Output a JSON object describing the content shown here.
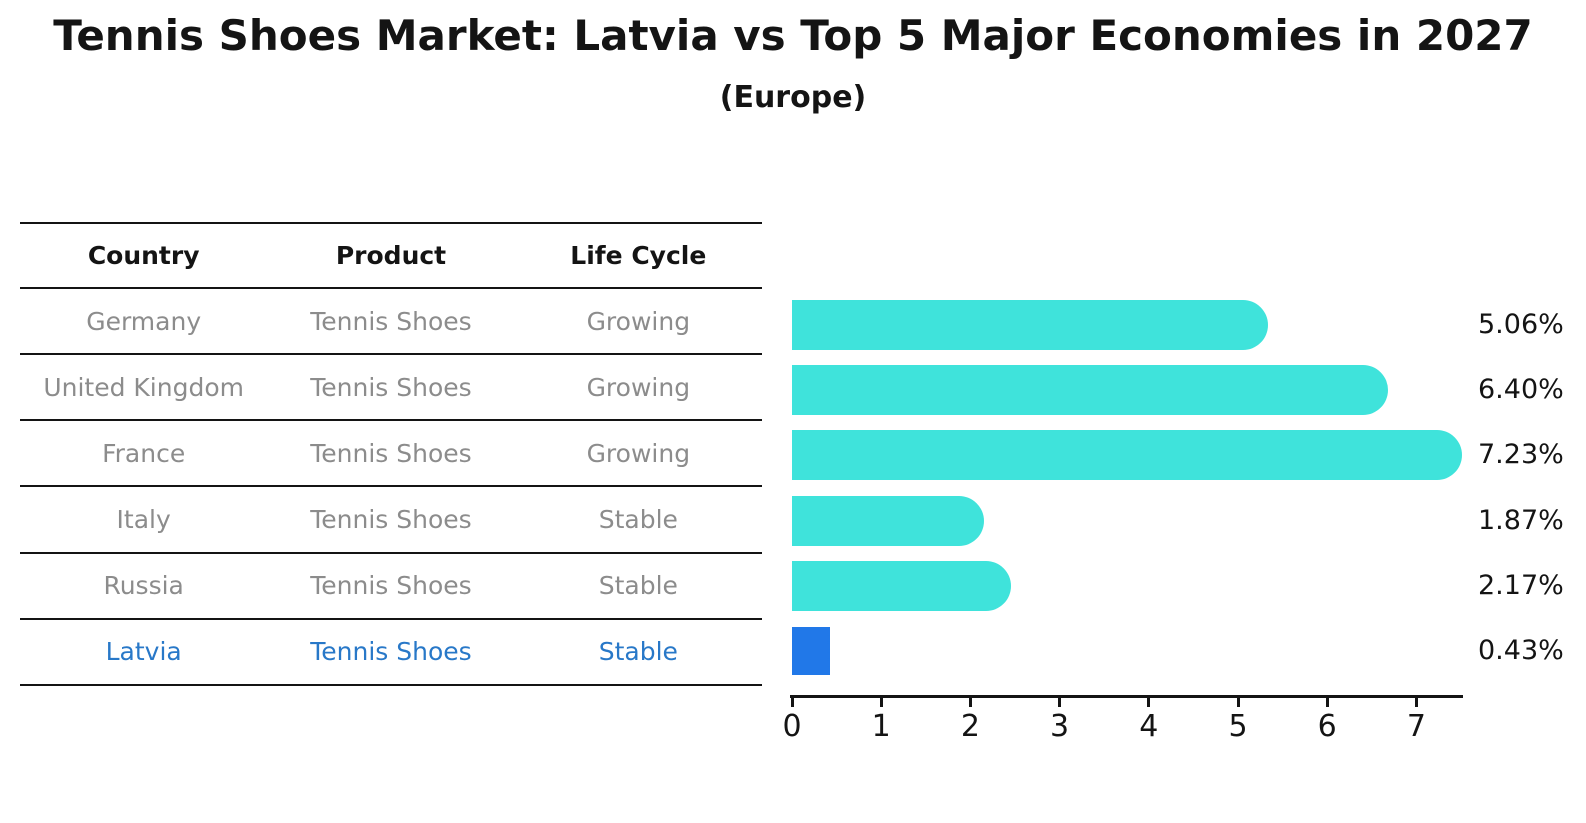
{
  "chart_data": {
    "type": "bar",
    "orientation": "horizontal",
    "title": "Tennis Shoes Market: Latvia vs Top 5 Major Economies in 2027",
    "subtitle": "(Europe)",
    "categories": [
      "Germany",
      "United Kingdom",
      "France",
      "Italy",
      "Russia",
      "Latvia"
    ],
    "values": [
      5.06,
      6.4,
      7.23,
      1.87,
      2.17,
      0.43
    ],
    "value_labels": [
      "5.06%",
      "6.40%",
      "7.23%",
      "1.87%",
      "2.17%",
      "0.43%"
    ],
    "x_ticks": [
      0,
      1,
      2,
      3,
      4,
      5,
      6,
      7
    ],
    "xlim": [
      0,
      7.5
    ],
    "xlabel": "",
    "ylabel": "",
    "grid": false,
    "legend": null,
    "bar_color": "#3FE3DB",
    "highlight_color": "#2178E8",
    "highlight_index": 5,
    "highlight_style": "dashed-outline"
  },
  "table": {
    "headers": [
      "Country",
      "Product",
      "Life Cycle"
    ],
    "rows": [
      {
        "country": "Germany",
        "product": "Tennis Shoes",
        "life_cycle": "Growing"
      },
      {
        "country": "United Kingdom",
        "product": "Tennis Shoes",
        "life_cycle": "Growing"
      },
      {
        "country": "France",
        "product": "Tennis Shoes",
        "life_cycle": "Growing"
      },
      {
        "country": "Italy",
        "product": "Tennis Shoes",
        "life_cycle": "Stable"
      },
      {
        "country": "Russia",
        "product": "Tennis Shoes",
        "life_cycle": "Stable"
      },
      {
        "country": "Latvia",
        "product": "Tennis Shoes",
        "life_cycle": "Stable"
      }
    ],
    "highlight_row": "Latvia"
  },
  "colors": {
    "bar_cyan": "#3FE3DB",
    "bar_blue": "#2178E8",
    "highlight_text_blue": "#2878C8",
    "table_text_gray": "#8C8C8C",
    "axis_black": "#141414"
  }
}
